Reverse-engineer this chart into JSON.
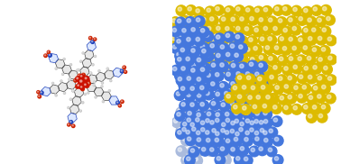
{
  "figsize": [
    3.78,
    1.82
  ],
  "dpi": 100,
  "background_color": "#ffffff",
  "left_bg": "#ffffff",
  "right_bg": "#ffffff",
  "atom_colors": {
    "carbon": "#3a3a3a",
    "hydrogen": "#c8c8c8",
    "oxygen_red": "#cc2200",
    "oxygen_orange": "#dd5500",
    "nitrogen": "#2244bb",
    "metal_red": "#cc1100",
    "bond": "#555555"
  },
  "sphere_colors": {
    "blue": "#4477dd",
    "yellow": "#ddbb00",
    "light_blue": "#aabbdd",
    "yellow_pale": "#e8d080"
  },
  "left_xlim": [
    -1.05,
    1.05
  ],
  "left_ylim": [
    -1.05,
    1.05
  ],
  "right_xlim": [
    0,
    1
  ],
  "right_ylim": [
    0,
    1
  ]
}
